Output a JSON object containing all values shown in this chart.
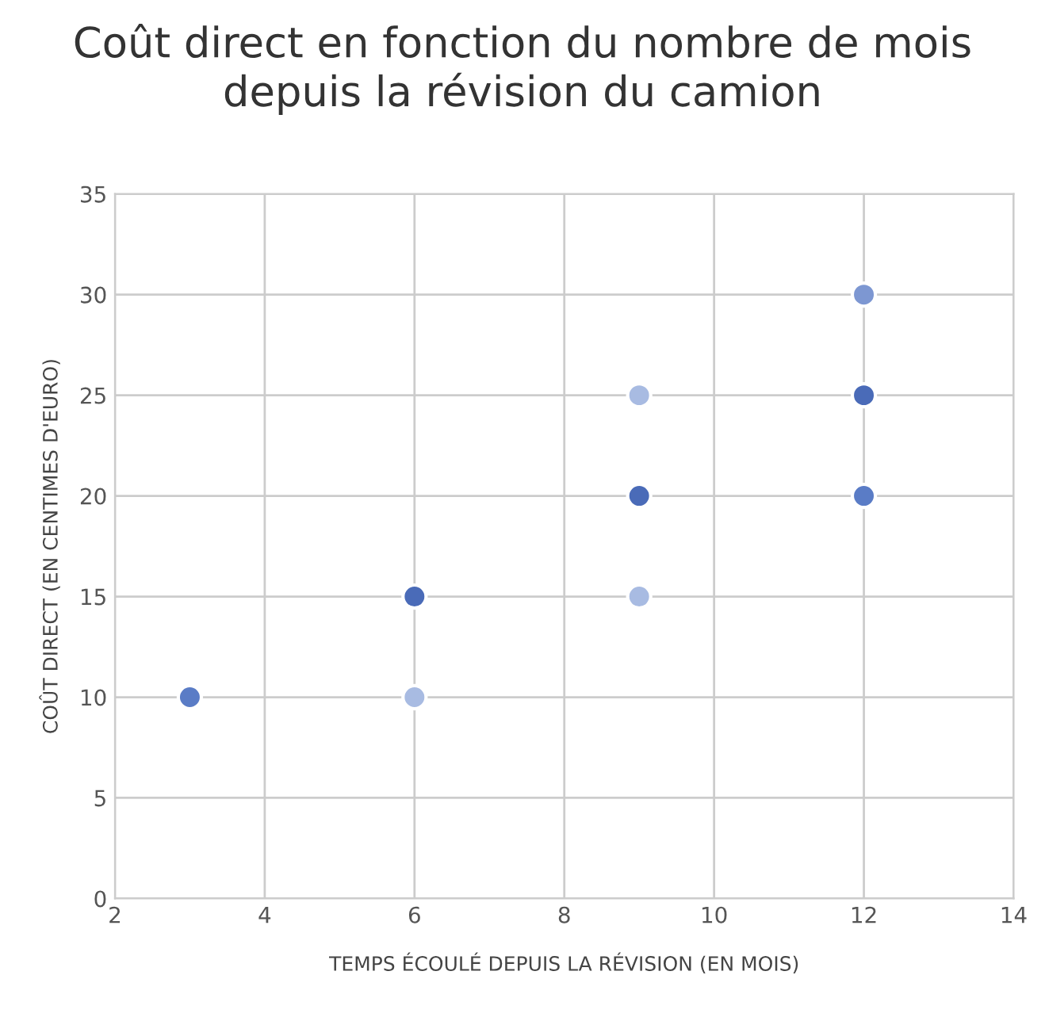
{
  "chart_data": {
    "type": "scatter",
    "title": "Coût direct en fonction du nombre de mois depuis la révision du camion",
    "xlabel": "TEMPS ÉCOULÉ DEPUIS LA RÉVISION (EN MOIS)",
    "ylabel": "COÛT DIRECT (EN CENTIMES D'EURO)",
    "x": [
      3,
      6,
      6,
      9,
      9,
      9,
      12,
      12,
      12
    ],
    "values": [
      10,
      15,
      10,
      25,
      20,
      15,
      30,
      25,
      20
    ],
    "colors": [
      "#5a7cc6",
      "#4a6bb8",
      "#a8bbe2",
      "#a8bbe2",
      "#4a6bb8",
      "#a8bbe2",
      "#7d97d2",
      "#4a6bb8",
      "#5a7cc6"
    ],
    "xlim": [
      2,
      14
    ],
    "xticks": [
      2,
      4,
      6,
      8,
      10,
      12,
      14
    ],
    "ylim": [
      0,
      35
    ],
    "yticks": [
      0,
      5,
      10,
      15,
      20,
      25,
      30,
      35
    ],
    "grid": true,
    "marker": "circle"
  }
}
